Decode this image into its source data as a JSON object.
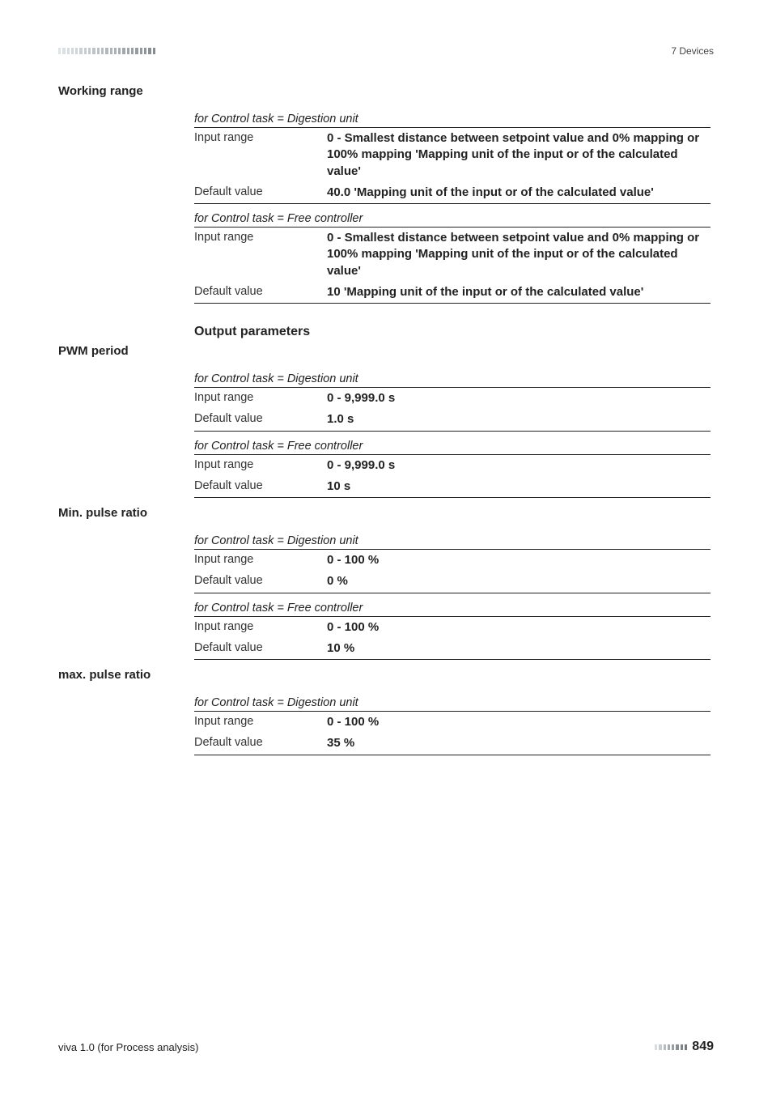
{
  "header": {
    "chapter": "7 Devices",
    "top_dashes": {
      "count": 23,
      "colors": [
        "#dfe3e6",
        "#dbe0e3",
        "#d7dcdf",
        "#d3d8dc",
        "#cfd4d8",
        "#cbd0d4",
        "#c7ccd0",
        "#c3c8cc",
        "#bfc4c8",
        "#bbc0c4",
        "#b7bcc0",
        "#b3b8bc",
        "#afb4b8",
        "#abb0b4",
        "#a7acb0",
        "#a3a8ac",
        "#9fa4a8",
        "#9ba0a4",
        "#979ca0",
        "#93989c",
        "#8f9498",
        "#8b9094",
        "#878c90"
      ]
    }
  },
  "sections": [
    {
      "heading": "Working range",
      "groups": [
        {
          "caption": "for Control task = Digestion unit",
          "rows": [
            {
              "label": "Input range",
              "value": "0 - Smallest distance between setpoint value and 0% mapping or 100% mapping 'Mapping unit of the input or of the calculated value'"
            },
            {
              "label": "Default value",
              "value": "40.0 'Mapping unit of the input or of the calculated value'"
            }
          ]
        },
        {
          "caption": "for Control task = Free controller",
          "rows": [
            {
              "label": "Input range",
              "value": "0 - Smallest distance between setpoint value and 0% mapping or 100% mapping 'Mapping unit of the input or of the calculated value'"
            },
            {
              "label": "Default value",
              "value": "10 'Mapping unit of the input or of the calculated value'"
            }
          ]
        }
      ]
    },
    {
      "sub_heading": "Output parameters"
    },
    {
      "heading": "PWM period",
      "groups": [
        {
          "caption": "for Control task = Digestion unit",
          "rows": [
            {
              "label": "Input range",
              "value": "0 - 9,999.0 s"
            },
            {
              "label": "Default value",
              "value": "1.0 s"
            }
          ]
        },
        {
          "caption": "for Control task = Free controller",
          "rows": [
            {
              "label": "Input range",
              "value": "0 - 9,999.0 s"
            },
            {
              "label": "Default value",
              "value": "10 s"
            }
          ]
        }
      ]
    },
    {
      "heading": "Min. pulse ratio",
      "groups": [
        {
          "caption": "for Control task = Digestion unit",
          "rows": [
            {
              "label": "Input range",
              "value": "0 - 100 %"
            },
            {
              "label": "Default value",
              "value": "0 %"
            }
          ]
        },
        {
          "caption": "for Control task = Free controller",
          "rows": [
            {
              "label": "Input range",
              "value": "0 - 100 %"
            },
            {
              "label": "Default value",
              "value": "10 %"
            }
          ]
        }
      ]
    },
    {
      "heading": "max. pulse ratio",
      "groups": [
        {
          "caption": "for Control task = Digestion unit",
          "rows": [
            {
              "label": "Input range",
              "value": "0 - 100 %"
            },
            {
              "label": "Default value",
              "value": "35 %"
            }
          ]
        }
      ]
    }
  ],
  "footer": {
    "left": "viva 1.0 (for Process analysis)",
    "page_number": "849",
    "bottom_dashes": {
      "count": 8,
      "colors": [
        "#d7dcdf",
        "#c7ccd0",
        "#b7bcc0",
        "#a7acb0",
        "#97a0a4",
        "#8b9094",
        "#7f8488",
        "#737a7e"
      ]
    }
  }
}
